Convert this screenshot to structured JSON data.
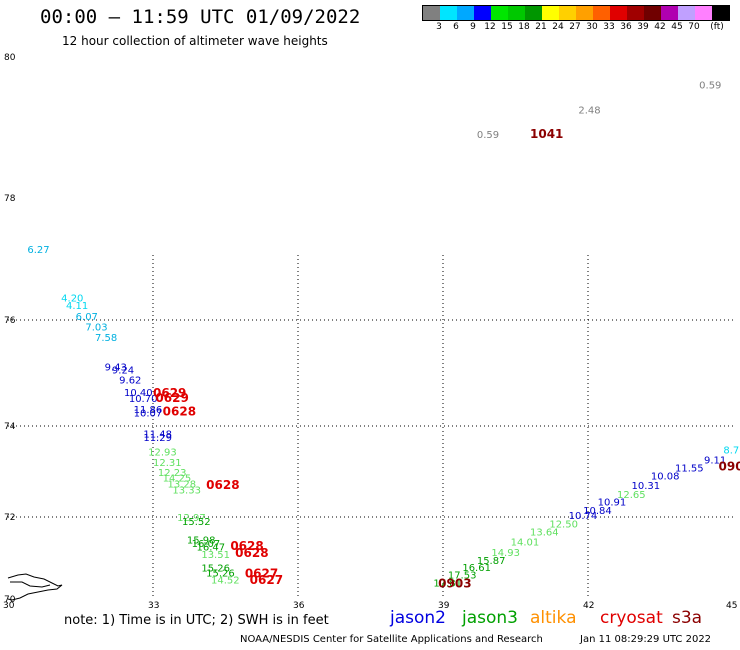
{
  "header": {
    "title": "00:00 – 11:59 UTC 01/09/2022",
    "subtitle": "12 hour collection of altimeter wave heights"
  },
  "color_scale": {
    "colors": [
      "#808080",
      "#00e5ff",
      "#00a8ff",
      "#0000ff",
      "#00e600",
      "#00c800",
      "#009600",
      "#ffff00",
      "#ffd000",
      "#ffa000",
      "#ff6000",
      "#e00000",
      "#a00000",
      "#700000",
      "#b000b0",
      "#c0a0ff",
      "#ff80ff",
      "#000000"
    ],
    "labels": [
      "3",
      "6",
      "9",
      "12",
      "15",
      "18",
      "21",
      "24",
      "27",
      "30",
      "33",
      "36",
      "39",
      "42",
      "45",
      "70",
      "(ft)"
    ]
  },
  "axes": {
    "lat_labels": [
      "80",
      "78",
      "76",
      "74",
      "72",
      "70"
    ],
    "lon_labels": [
      "30",
      "33",
      "36",
      "39",
      "42",
      "45"
    ]
  },
  "observations": [
    {
      "t": "0.59",
      "c": "#808080",
      "lon": 44.3,
      "lat": 79.55
    },
    {
      "t": "2.48",
      "c": "#808080",
      "lon": 41.8,
      "lat": 79.2
    },
    {
      "t": "0.59",
      "c": "#808080",
      "lon": 39.7,
      "lat": 78.85
    },
    {
      "t": "1041",
      "c": "#8b0000",
      "lon": 40.8,
      "lat": 78.85
    },
    {
      "t": "6.27",
      "c": "#00b0e0",
      "lon": 30.4,
      "lat": 77.1
    },
    {
      "t": "4.20",
      "c": "#00d8f0",
      "lon": 31.1,
      "lat": 76.3
    },
    {
      "t": "4.11",
      "c": "#00d8f0",
      "lon": 31.2,
      "lat": 76.18
    },
    {
      "t": "6.07",
      "c": "#00b0e0",
      "lon": 31.4,
      "lat": 76.0
    },
    {
      "t": "7.03",
      "c": "#00b0e0",
      "lon": 31.6,
      "lat": 75.8
    },
    {
      "t": "7.58",
      "c": "#00b0e0",
      "lon": 31.8,
      "lat": 75.6
    },
    {
      "t": "9.43",
      "c": "#0000c8",
      "lon": 32.0,
      "lat": 75.05
    },
    {
      "t": "9.24",
      "c": "#0000c8",
      "lon": 32.15,
      "lat": 74.99
    },
    {
      "t": "9.62",
      "c": "#0000c8",
      "lon": 32.3,
      "lat": 74.8
    },
    {
      "t": "10.40",
      "c": "#0000c8",
      "lon": 32.4,
      "lat": 74.57
    },
    {
      "t": "10.70",
      "c": "#0000c8",
      "lon": 32.5,
      "lat": 74.45
    },
    {
      "t": "11.86",
      "c": "#0000c8",
      "lon": 32.6,
      "lat": 74.25
    },
    {
      "t": "10.07",
      "c": "#0000c8",
      "lon": 32.6,
      "lat": 74.18
    },
    {
      "t": "0629",
      "c": "#e00000",
      "lon": 33.0,
      "lat": 74.55
    },
    {
      "t": "0629",
      "c": "#e00000",
      "lon": 33.05,
      "lat": 74.45
    },
    {
      "t": "0628",
      "c": "#e00000",
      "lon": 33.2,
      "lat": 74.2
    },
    {
      "t": "11.48",
      "c": "#0000c8",
      "lon": 32.8,
      "lat": 73.75
    },
    {
      "t": "11.29",
      "c": "#0000c8",
      "lon": 32.8,
      "lat": 73.67
    },
    {
      "t": "12.93",
      "c": "#60e060",
      "lon": 32.9,
      "lat": 73.35
    },
    {
      "t": "12.31",
      "c": "#60e060",
      "lon": 33.0,
      "lat": 73.12
    },
    {
      "t": "12.23",
      "c": "#60e060",
      "lon": 33.1,
      "lat": 72.9
    },
    {
      "t": "14.25",
      "c": "#60e060",
      "lon": 33.2,
      "lat": 72.78
    },
    {
      "t": "13.28",
      "c": "#60e060",
      "lon": 33.3,
      "lat": 72.65
    },
    {
      "t": "13.33",
      "c": "#60e060",
      "lon": 33.4,
      "lat": 72.52
    },
    {
      "t": "0628",
      "c": "#e00000",
      "lon": 34.1,
      "lat": 72.62
    },
    {
      "t": "12.97",
      "c": "#60e060",
      "lon": 33.5,
      "lat": 71.9
    },
    {
      "t": "15.52",
      "c": "#00a000",
      "lon": 33.6,
      "lat": 71.8
    },
    {
      "t": "15.98",
      "c": "#00a000",
      "lon": 33.7,
      "lat": 71.35
    },
    {
      "t": "16.07",
      "c": "#00a000",
      "lon": 33.8,
      "lat": 71.27
    },
    {
      "t": "16.47",
      "c": "#00a000",
      "lon": 33.9,
      "lat": 71.18
    },
    {
      "t": "13.51",
      "c": "#60e060",
      "lon": 34.0,
      "lat": 71.0
    },
    {
      "t": "0628",
      "c": "#e00000",
      "lon": 34.6,
      "lat": 71.2
    },
    {
      "t": "0628",
      "c": "#e00000",
      "lon": 34.7,
      "lat": 71.03
    },
    {
      "t": "15.26",
      "c": "#00a000",
      "lon": 34.0,
      "lat": 70.67
    },
    {
      "t": "15.26",
      "c": "#00a000",
      "lon": 34.1,
      "lat": 70.55
    },
    {
      "t": "14.52",
      "c": "#60e060",
      "lon": 34.2,
      "lat": 70.38
    },
    {
      "t": "0627",
      "c": "#e00000",
      "lon": 34.9,
      "lat": 70.52
    },
    {
      "t": "0627",
      "c": "#e00000",
      "lon": 35.0,
      "lat": 70.36
    },
    {
      "t": "17.81",
      "c": "#00a000",
      "lon": 38.8,
      "lat": 70.3
    },
    {
      "t": "17.53",
      "c": "#00a000",
      "lon": 39.1,
      "lat": 70.5
    },
    {
      "t": "16.61",
      "c": "#00a000",
      "lon": 39.4,
      "lat": 70.68
    },
    {
      "t": "15.87",
      "c": "#00a000",
      "lon": 39.7,
      "lat": 70.85
    },
    {
      "t": "14.93",
      "c": "#60e060",
      "lon": 40.0,
      "lat": 71.05
    },
    {
      "t": "14.01",
      "c": "#60e060",
      "lon": 40.4,
      "lat": 71.3
    },
    {
      "t": "13.64",
      "c": "#60e060",
      "lon": 40.8,
      "lat": 71.55
    },
    {
      "t": "12.50",
      "c": "#60e060",
      "lon": 41.2,
      "lat": 71.75
    },
    {
      "t": "10.74",
      "c": "#0000c8",
      "lon": 41.6,
      "lat": 71.95
    },
    {
      "t": "10.84",
      "c": "#0000c8",
      "lon": 41.9,
      "lat": 72.07
    },
    {
      "t": "10.91",
      "c": "#0000c8",
      "lon": 42.2,
      "lat": 72.25
    },
    {
      "t": "12.65",
      "c": "#60e060",
      "lon": 42.6,
      "lat": 72.42
    },
    {
      "t": "10.31",
      "c": "#0000c8",
      "lon": 42.9,
      "lat": 72.62
    },
    {
      "t": "10.08",
      "c": "#0000c8",
      "lon": 43.3,
      "lat": 72.82
    },
    {
      "t": "11.55",
      "c": "#0000c8",
      "lon": 43.8,
      "lat": 73.0
    },
    {
      "t": "9.11",
      "c": "#0000c8",
      "lon": 44.4,
      "lat": 73.18
    },
    {
      "t": "8.7",
      "c": "#00d8f0",
      "lon": 44.8,
      "lat": 73.4
    },
    {
      "t": "0903",
      "c": "#8b0000",
      "lon": 38.9,
      "lat": 70.28
    },
    {
      "t": "090",
      "c": "#8b0000",
      "lon": 44.7,
      "lat": 73.02
    }
  ],
  "footer": {
    "note": "note: 1) Time is in UTC; 2) SWH is in feet",
    "satellites": [
      {
        "name": "jason2",
        "color": "#0000e0"
      },
      {
        "name": "jason3",
        "color": "#00a000"
      },
      {
        "name": "altika",
        "color": "#ff9000"
      },
      {
        "name": "cryosat",
        "color": "#e00000"
      },
      {
        "name": "s3a",
        "color": "#8b0000"
      }
    ],
    "credit": "NOAA/NESDIS Center for Satellite Applications and Research",
    "timestamp": "Jan 11 08:29:29 UTC 2022"
  }
}
